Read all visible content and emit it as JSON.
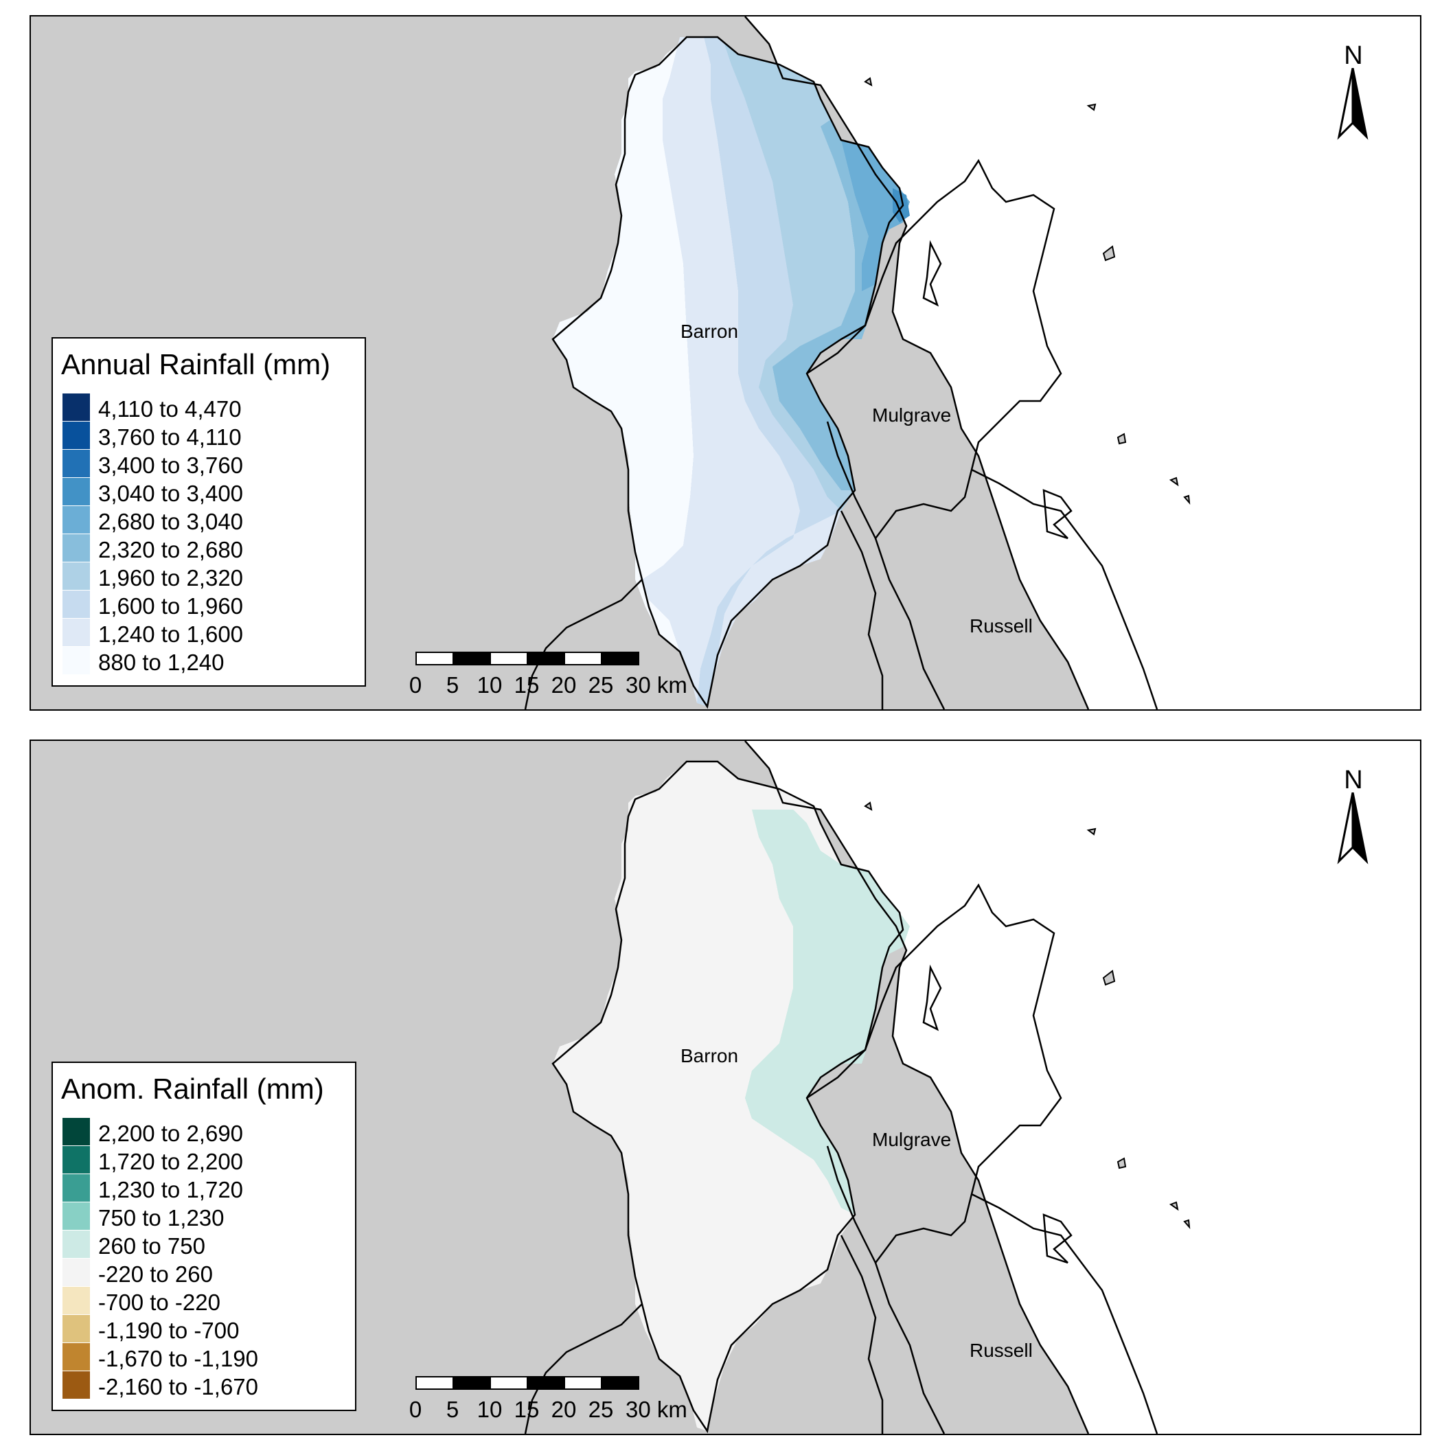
{
  "panels": [
    {
      "regions": {
        "barron": "Barron",
        "mulgrave": "Mulgrave",
        "russell": "Russell"
      },
      "north": "N",
      "legend": {
        "title": "Annual Rainfall (mm)",
        "items": [
          {
            "label": "4,110 to 4,470",
            "color": "#08306b"
          },
          {
            "label": "3,760 to 4,110",
            "color": "#08519c"
          },
          {
            "label": "3,400 to 3,760",
            "color": "#2171b5"
          },
          {
            "label": "3,040 to 3,400",
            "color": "#4292c6"
          },
          {
            "label": "2,680 to 3,040",
            "color": "#6baed6"
          },
          {
            "label": "2,320 to 2,680",
            "color": "#88bedc"
          },
          {
            "label": "1,960 to 2,320",
            "color": "#aed1e6"
          },
          {
            "label": "1,600 to 1,960",
            "color": "#c6dbef"
          },
          {
            "label": "1,240 to 1,600",
            "color": "#dfe9f6"
          },
          {
            "label": "880 to 1,240",
            "color": "#f7fbff"
          }
        ]
      },
      "scalebar": {
        "ticks": [
          "0",
          "5",
          "10",
          "15",
          "20",
          "25",
          "30 km"
        ]
      }
    },
    {
      "regions": {
        "barron": "Barron",
        "mulgrave": "Mulgrave",
        "russell": "Russell"
      },
      "north": "N",
      "legend": {
        "title": "Anom. Rainfall (mm)",
        "items": [
          {
            "label": "2,200 to 2,690",
            "color": "#01463a"
          },
          {
            "label": "1,720 to 2,200",
            "color": "#0f7366"
          },
          {
            "label": "1,230 to 1,720",
            "color": "#3a9e93"
          },
          {
            "label": "750 to 1,230",
            "color": "#88d0c5"
          },
          {
            "label": "260 to 750",
            "color": "#cdeae5"
          },
          {
            "label": "-220 to 260",
            "color": "#f4f4f4"
          },
          {
            "label": "-700 to -220",
            "color": "#f5e6bf"
          },
          {
            "label": "-1,190 to -700",
            "color": "#dfc27d"
          },
          {
            "label": "-1,670 to -1,190",
            "color": "#c0852f"
          },
          {
            "label": "-2,160 to -1,670",
            "color": "#9c5a12"
          }
        ]
      },
      "scalebar": {
        "ticks": [
          "0",
          "5",
          "10",
          "15",
          "20",
          "25",
          "30 km"
        ]
      }
    }
  ]
}
